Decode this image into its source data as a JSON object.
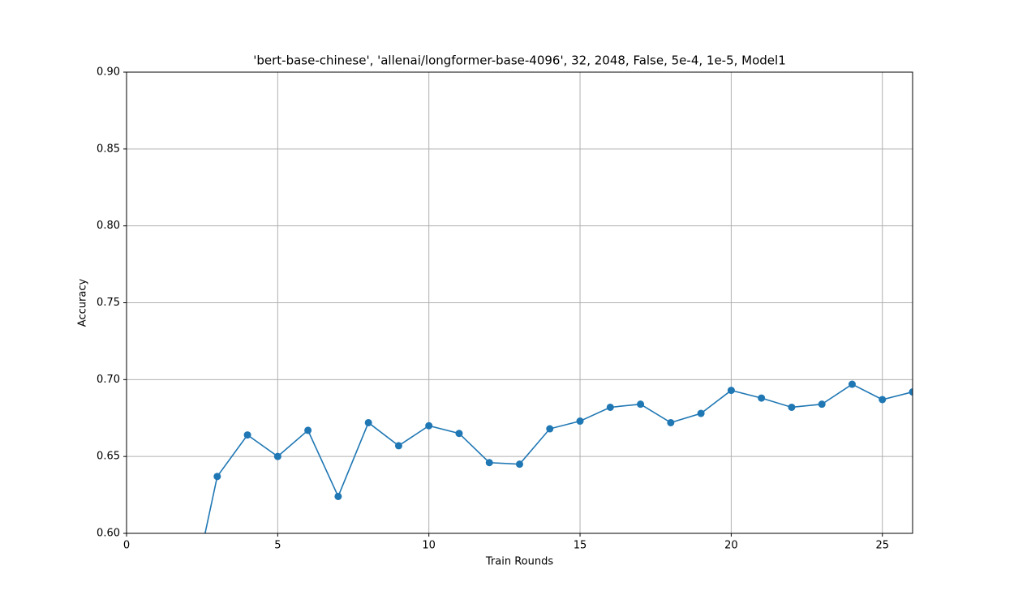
{
  "chart_data": {
    "type": "line",
    "title": "'bert-base-chinese', 'allenai/longformer-base-4096', 32, 2048, False, 5e-4, 1e-5, Model1",
    "x_label": "Train Rounds",
    "y_label": "Accuracy",
    "x": [
      2,
      3,
      4,
      5,
      6,
      7,
      8,
      9,
      10,
      11,
      12,
      13,
      14,
      15,
      16,
      17,
      18,
      19,
      20,
      21,
      22,
      23,
      24,
      25,
      26
    ],
    "values": [
      0.545,
      0.637,
      0.664,
      0.65,
      0.667,
      0.624,
      0.672,
      0.657,
      0.67,
      0.665,
      0.646,
      0.645,
      0.668,
      0.673,
      0.682,
      0.684,
      0.672,
      0.678,
      0.693,
      0.688,
      0.682,
      0.684,
      0.697,
      0.687,
      0.692
    ],
    "color": "#1f77b4",
    "xlim": [
      0,
      26
    ],
    "xticks": [
      0,
      5,
      10,
      15,
      20,
      25
    ],
    "ylim": [
      0.6,
      0.9
    ],
    "yticks": [
      {
        "value": 0.6,
        "label": "0.60"
      },
      {
        "value": 0.65,
        "label": "0.65"
      },
      {
        "value": 0.7,
        "label": "0.70"
      },
      {
        "value": 0.75,
        "label": "0.75"
      },
      {
        "value": 0.8,
        "label": "0.80"
      },
      {
        "value": 0.85,
        "label": "0.85"
      },
      {
        "value": 0.9,
        "label": "0.90"
      }
    ],
    "grid": true
  }
}
